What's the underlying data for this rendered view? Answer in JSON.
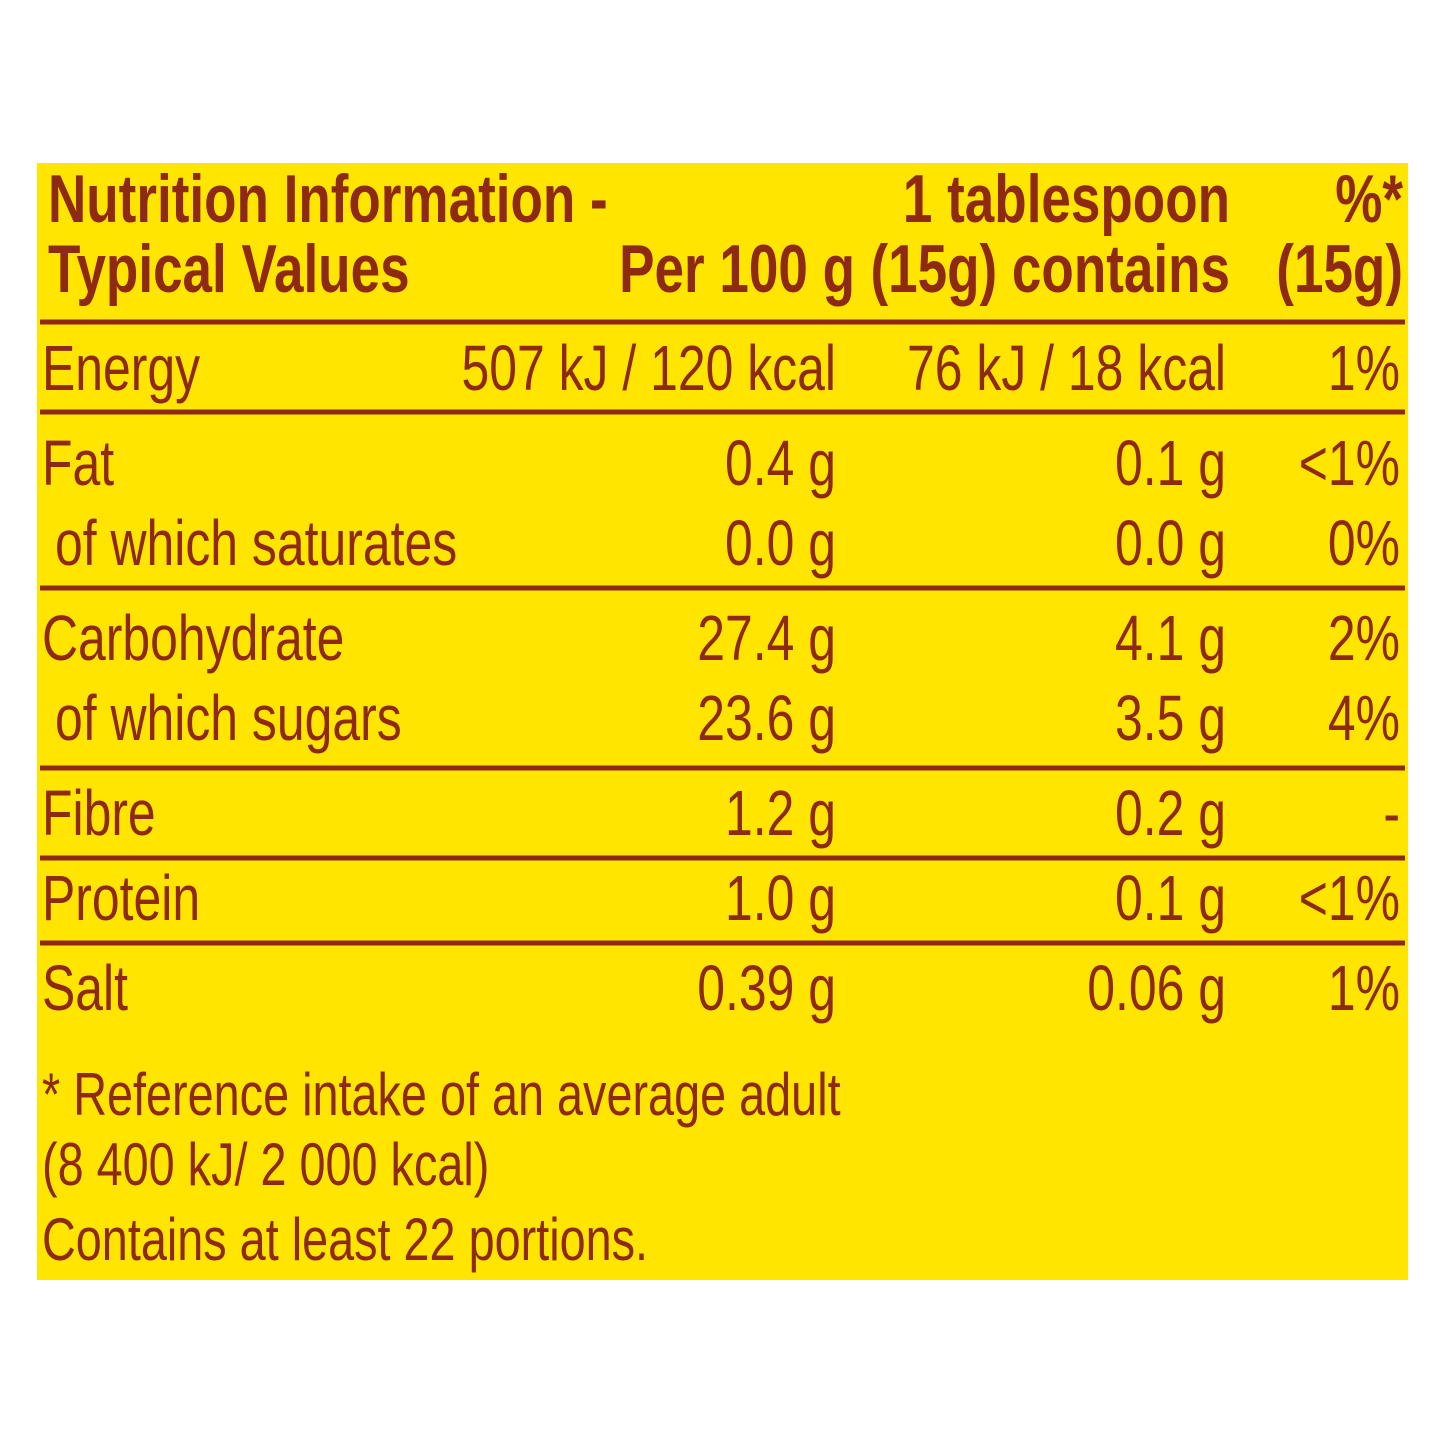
{
  "header": {
    "label": [
      "Nutrition Information -",
      "Typical Values"
    ],
    "per_100g": [
      "Per 100 g"
    ],
    "per_portion": [
      "1 tablespoon",
      "(15g) contains"
    ],
    "percent": [
      "%*",
      "(15g)"
    ]
  },
  "table": {
    "rows": [
      [
        "Energy",
        "507 kJ / 120 kcal",
        "76 kJ / 18 kcal",
        "1%"
      ],
      [
        "Fat",
        "0.4 g",
        "0.1 g",
        "<1%"
      ],
      [
        "of which saturates",
        "0.0 g",
        "0.0 g",
        "0%"
      ],
      [
        "Carbohydrate",
        "27.4 g",
        "4.1 g",
        "2%"
      ],
      [
        "of which sugars",
        "23.6 g",
        "3.5 g",
        "4%"
      ],
      [
        "Fibre",
        "1.2 g",
        "0.2 g",
        "-"
      ],
      [
        "Protein",
        "1.0 g",
        "0.1 g",
        "<1%"
      ],
      [
        "Salt",
        "0.39 g",
        "0.06 g",
        "1%"
      ]
    ]
  },
  "footnotes": [
    "* Reference intake of an average adult",
    "(8 400 kJ/ 2 000 kcal)",
    "Contains at least 22 portions."
  ]
}
